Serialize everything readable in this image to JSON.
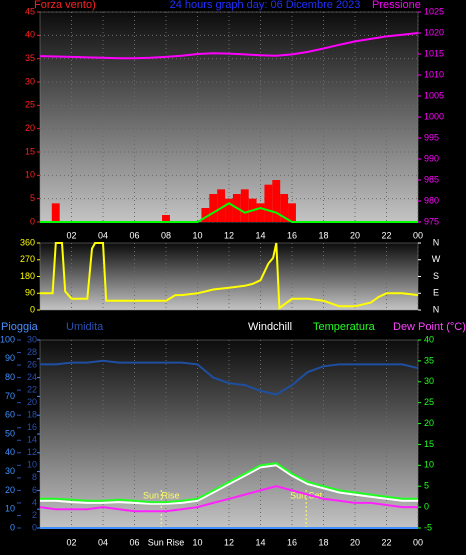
{
  "chart_data": [
    {
      "type": "combo",
      "title": "24 hours graph day: 06 Dicembre 2023",
      "ylabel": "Forza vento)",
      "y2label": "Pressione",
      "xlim": [
        0,
        24
      ],
      "xticks": [
        {
          "value": 2,
          "label": "02"
        },
        {
          "value": 4,
          "label": "04"
        },
        {
          "value": 6,
          "label": "06"
        },
        {
          "value": 8,
          "label": "08"
        },
        10,
        12,
        14,
        16,
        18,
        20,
        22,
        {
          "value": 24,
          "label": "00"
        }
      ],
      "ylim": [
        0,
        45
      ],
      "yticks": [
        0,
        5,
        10,
        15,
        20,
        25,
        30,
        35,
        40,
        45
      ],
      "y2lim": [
        975,
        1025
      ],
      "y2ticks": [
        975,
        980,
        985,
        990,
        995,
        1000,
        1005,
        1010,
        1015,
        1020,
        1025
      ],
      "grid": true,
      "x": [
        0,
        1,
        2,
        3,
        4,
        5,
        6,
        7,
        8,
        9,
        10,
        11,
        12,
        13,
        14,
        15,
        16,
        17,
        18,
        19,
        20,
        21,
        22,
        23,
        24
      ],
      "series": [
        {
          "style": "bar",
          "color": "#ff0000",
          "x": [
            1,
            8,
            10.5,
            11,
            11.5,
            12,
            12.5,
            13,
            13.5,
            14,
            14.5,
            15,
            15.5,
            16
          ],
          "values": [
            4,
            1.5,
            3,
            6,
            7,
            5,
            6,
            7,
            5,
            4,
            8,
            9,
            6,
            4
          ]
        },
        {
          "style": "line",
          "color": "#00ff00",
          "values": [
            0,
            0,
            0,
            0,
            0,
            0,
            0,
            0,
            0,
            0,
            0,
            2,
            4,
            2,
            3,
            2,
            0,
            0,
            0,
            0,
            0,
            0,
            0,
            0,
            0
          ]
        },
        {
          "style": "line",
          "color": "#ff00ff",
          "axis": "y2",
          "values": [
            1014.5,
            1014.4,
            1014.3,
            1014.2,
            1014.1,
            1014,
            1014,
            1014.1,
            1014.3,
            1014.6,
            1015,
            1015.2,
            1015.1,
            1014.9,
            1014.7,
            1014.6,
            1014.9,
            1015.5,
            1016.3,
            1017.2,
            1018,
            1018.6,
            1019.2,
            1019.6,
            1020
          ]
        }
      ]
    },
    {
      "type": "line",
      "xlim": [
        0,
        24
      ],
      "xticks": [
        2,
        4,
        6,
        8,
        10,
        12,
        14,
        16,
        18,
        20,
        22,
        24
      ],
      "xtick_labels": false,
      "ylim": [
        0,
        360
      ],
      "yticks": [
        0,
        90,
        180,
        270,
        360
      ],
      "y2lim": [
        0,
        360
      ],
      "y2ticks": [
        {
          "value": 0,
          "label": "N"
        },
        {
          "value": 90,
          "label": "E"
        },
        {
          "value": 180,
          "label": "S"
        },
        {
          "value": 270,
          "label": "W"
        },
        {
          "value": 360,
          "label": "N"
        }
      ],
      "grid": true,
      "x": [
        0,
        0.8,
        1,
        1.4,
        1.6,
        2,
        3,
        3.3,
        3.5,
        4,
        4.2,
        6,
        8,
        8.6,
        9,
        10,
        11,
        12,
        13,
        13.5,
        14,
        14.5,
        14.8,
        15,
        15.2,
        16,
        17,
        18,
        19,
        20,
        21,
        21.5,
        22,
        23,
        24
      ],
      "series": [
        {
          "style": "line",
          "color": "#ffff00",
          "values": [
            90,
            90,
            360,
            360,
            100,
            60,
            60,
            330,
            360,
            360,
            50,
            50,
            50,
            80,
            80,
            90,
            110,
            120,
            130,
            140,
            160,
            250,
            280,
            360,
            10,
            60,
            60,
            50,
            20,
            20,
            40,
            70,
            90,
            90,
            80
          ]
        }
      ]
    },
    {
      "type": "line",
      "xlim": [
        0,
        24
      ],
      "xticks": [
        {
          "value": 2,
          "label": "02"
        },
        {
          "value": 4,
          "label": "04"
        },
        {
          "value": 6,
          "label": "06"
        },
        {
          "value": 8,
          "label": "Sun Rise"
        },
        10,
        12,
        14,
        16,
        18,
        20,
        22,
        {
          "value": 24,
          "label": "00"
        }
      ],
      "ylim": [
        0,
        100
      ],
      "yticks": [
        0,
        10,
        20,
        30,
        40,
        50,
        60,
        70,
        80,
        90,
        100
      ],
      "y3lim": [
        0,
        30
      ],
      "y3ticks": [
        0,
        2,
        4,
        6,
        8,
        10,
        12,
        14,
        16,
        18,
        20,
        22,
        24,
        26,
        28,
        30
      ],
      "y2lim": [
        -5,
        40
      ],
      "y2ticks": [
        -5,
        0,
        5,
        10,
        15,
        20,
        25,
        30,
        35,
        40
      ],
      "grid": true,
      "annotations": [
        {
          "x": 7.7,
          "label": "Sun Rise"
        },
        {
          "x": 16.9,
          "label": "Sun Set"
        }
      ],
      "x": [
        0,
        1,
        2,
        3,
        4,
        5,
        6,
        7,
        8,
        9,
        10,
        11,
        12,
        13,
        14,
        15,
        16,
        17,
        18,
        19,
        20,
        21,
        22,
        23,
        24
      ],
      "series": [
        {
          "name": "Pioggia",
          "style": "line",
          "color": "#3f8fff",
          "axis": "y3",
          "values": [
            0,
            0,
            0,
            0,
            0,
            0,
            0,
            0,
            0,
            0,
            0,
            0,
            0,
            0,
            0,
            0,
            0,
            0,
            0,
            0,
            0,
            0,
            0,
            0,
            0
          ]
        },
        {
          "name": "Umidita",
          "style": "line",
          "color": "#1e4fa0",
          "values": [
            87,
            87,
            88,
            88,
            89,
            88,
            88,
            88,
            88,
            88,
            87,
            80,
            77,
            76,
            73,
            71,
            76,
            83,
            86,
            87,
            87,
            87,
            87,
            87,
            85
          ]
        },
        {
          "name": "Windchill",
          "style": "line",
          "color": "#ffffff",
          "axis": "y2",
          "values": [
            1.5,
            1.5,
            1.2,
            1,
            1,
            1.2,
            1,
            0.8,
            0.8,
            1,
            1.5,
            3.5,
            5.5,
            7.5,
            9.5,
            10,
            7.5,
            5.5,
            4.5,
            3.5,
            3,
            2.5,
            2,
            1.5,
            1.5
          ]
        },
        {
          "name": "Temperatura",
          "style": "line",
          "color": "#22ff22",
          "axis": "y2",
          "values": [
            2,
            2,
            1.8,
            1.5,
            1.5,
            1.8,
            1.5,
            1.2,
            1.2,
            1.5,
            2,
            4,
            6,
            8,
            10,
            10.5,
            8,
            6,
            5,
            4,
            3.5,
            3,
            2.5,
            2,
            2
          ]
        },
        {
          "name": "Dew Point (°C)",
          "style": "line",
          "color": "#ff22ff",
          "axis": "y2",
          "values": [
            0,
            -0.5,
            -0.5,
            -0.5,
            0,
            -0.5,
            -1,
            -1,
            -1,
            -0.5,
            0,
            1,
            2,
            3,
            4,
            5,
            4,
            3,
            2,
            1.5,
            1,
            1,
            0.5,
            0,
            0
          ]
        }
      ]
    }
  ]
}
